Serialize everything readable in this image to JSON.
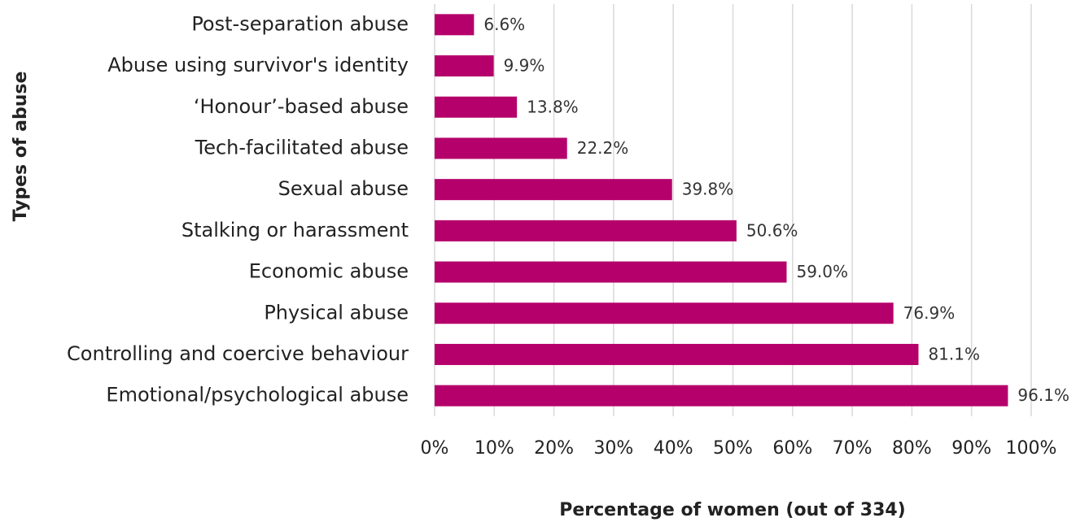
{
  "chart_data": {
    "type": "bar",
    "orientation": "horizontal",
    "x_label": "Percentage of women (out of 334)",
    "y_label": "Types of abuse",
    "categories": [
      "Post-separation abuse",
      "Abuse using survivor's identity",
      "‘Honour’-based abuse",
      "Tech-facilitated abuse",
      "Sexual abuse",
      "Stalking or harassment",
      "Economic abuse",
      "Physical abuse",
      "Controlling and coercive behaviour",
      "Emotional/psychological abuse"
    ],
    "values": [
      6.6,
      9.9,
      13.8,
      22.2,
      39.8,
      50.6,
      59.0,
      76.9,
      81.1,
      96.1
    ],
    "value_labels": [
      "6.6%",
      "9.9%",
      "13.8%",
      "22.2%",
      "39.8%",
      "50.6%",
      "59.0%",
      "76.9%",
      "81.1%",
      "96.1%"
    ],
    "color": "#b5006b",
    "xlim": [
      0,
      100
    ],
    "xticks": [
      {
        "value": 0,
        "label": "0%"
      },
      {
        "value": 10,
        "label": "10%"
      },
      {
        "value": 20,
        "label": "20%"
      },
      {
        "value": 30,
        "label": "30%"
      },
      {
        "value": 40,
        "label": "40%"
      },
      {
        "value": 50,
        "label": "50%"
      },
      {
        "value": 60,
        "label": "60%"
      },
      {
        "value": 70,
        "label": "70%"
      },
      {
        "value": 80,
        "label": "80%"
      },
      {
        "value": 90,
        "label": "90%"
      },
      {
        "value": 100,
        "label": "100%"
      }
    ],
    "grid": true
  }
}
